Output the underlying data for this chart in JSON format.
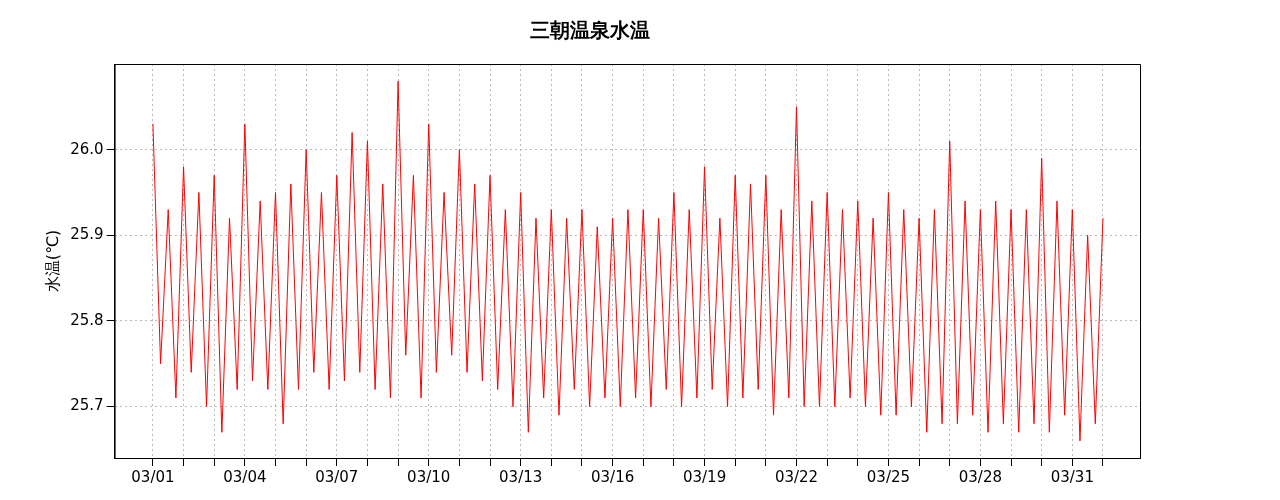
{
  "chart_data": {
    "type": "line",
    "title": "三朝温泉水温",
    "ylabel": "水温(℃)",
    "xlim": [
      "--02-27T18:00",
      "--04-02T05:00"
    ],
    "ylim": [
      25.64,
      26.1
    ],
    "xticks": [
      {
        "value": "--03-01",
        "label": "03/01"
      },
      {
        "value": "--03-02",
        "label": null
      },
      {
        "value": "--03-03",
        "label": null
      },
      {
        "value": "--03-04",
        "label": "03/04"
      },
      {
        "value": "--03-05",
        "label": null
      },
      {
        "value": "--03-06",
        "label": null
      },
      {
        "value": "--03-07",
        "label": "03/07"
      },
      {
        "value": "--03-08",
        "label": null
      },
      {
        "value": "--03-09",
        "label": null
      },
      {
        "value": "--03-10",
        "label": "03/10"
      },
      {
        "value": "--03-11",
        "label": null
      },
      {
        "value": "--03-12",
        "label": null
      },
      {
        "value": "--03-13",
        "label": "03/13"
      },
      {
        "value": "--03-14",
        "label": null
      },
      {
        "value": "--03-15",
        "label": null
      },
      {
        "value": "--03-16",
        "label": "03/16"
      },
      {
        "value": "--03-17",
        "label": null
      },
      {
        "value": "--03-18",
        "label": null
      },
      {
        "value": "--03-19",
        "label": "03/19"
      },
      {
        "value": "--03-20",
        "label": null
      },
      {
        "value": "--03-21",
        "label": null
      },
      {
        "value": "--03-22",
        "label": "03/22"
      },
      {
        "value": "--03-23",
        "label": null
      },
      {
        "value": "--03-24",
        "label": null
      },
      {
        "value": "--03-25",
        "label": "03/25"
      },
      {
        "value": "--03-26",
        "label": null
      },
      {
        "value": "--03-27",
        "label": null
      },
      {
        "value": "--03-28",
        "label": "03/28"
      },
      {
        "value": "--03-29",
        "label": null
      },
      {
        "value": "--03-30",
        "label": null
      },
      {
        "value": "--03-31",
        "label": "03/31"
      },
      {
        "value": "--04-01",
        "label": null
      }
    ],
    "yticks": [
      25.7,
      25.8,
      25.9,
      {
        "value": 26,
        "label": "26.0"
      }
    ],
    "grid": true,
    "legend": false,
    "series": [
      {
        "color": "#ff0000",
        "x": [
          "--03-01T00:00",
          "--03-01T06:00",
          "--03-01T12:00",
          "--03-01T18:00",
          "--03-02T00:00",
          "--03-02T06:00",
          "--03-02T12:00",
          "--03-02T18:00",
          "--03-03T00:00",
          "--03-03T06:00",
          "--03-03T12:00",
          "--03-03T18:00",
          "--03-04T00:00",
          "--03-04T06:00",
          "--03-04T12:00",
          "--03-04T18:00",
          "--03-05T00:00",
          "--03-05T06:00",
          "--03-05T12:00",
          "--03-05T18:00",
          "--03-06T00:00",
          "--03-06T06:00",
          "--03-06T12:00",
          "--03-06T18:00",
          "--03-07T00:00",
          "--03-07T06:00",
          "--03-07T12:00",
          "--03-07T18:00",
          "--03-08T00:00",
          "--03-08T06:00",
          "--03-08T12:00",
          "--03-08T18:00",
          "--03-09T00:00",
          "--03-09T06:00",
          "--03-09T12:00",
          "--03-09T18:00",
          "--03-10T00:00",
          "--03-10T06:00",
          "--03-10T12:00",
          "--03-10T18:00",
          "--03-11T00:00",
          "--03-11T06:00",
          "--03-11T12:00",
          "--03-11T18:00",
          "--03-12T00:00",
          "--03-12T06:00",
          "--03-12T12:00",
          "--03-12T18:00",
          "--03-13T00:00",
          "--03-13T06:00",
          "--03-13T12:00",
          "--03-13T18:00",
          "--03-14T00:00",
          "--03-14T06:00",
          "--03-14T12:00",
          "--03-14T18:00",
          "--03-15T00:00",
          "--03-15T06:00",
          "--03-15T12:00",
          "--03-15T18:00",
          "--03-16T00:00",
          "--03-16T06:00",
          "--03-16T12:00",
          "--03-16T18:00",
          "--03-17T00:00",
          "--03-17T06:00",
          "--03-17T12:00",
          "--03-17T18:00",
          "--03-18T00:00",
          "--03-18T06:00",
          "--03-18T12:00",
          "--03-18T18:00",
          "--03-19T00:00",
          "--03-19T06:00",
          "--03-19T12:00",
          "--03-19T18:00",
          "--03-20T00:00",
          "--03-20T06:00",
          "--03-20T12:00",
          "--03-20T18:00",
          "--03-21T00:00",
          "--03-21T06:00",
          "--03-21T12:00",
          "--03-21T18:00",
          "--03-22T00:00",
          "--03-22T06:00",
          "--03-22T12:00",
          "--03-22T18:00",
          "--03-23T00:00",
          "--03-23T06:00",
          "--03-23T12:00",
          "--03-23T18:00",
          "--03-24T00:00",
          "--03-24T06:00",
          "--03-24T12:00",
          "--03-24T18:00",
          "--03-25T00:00",
          "--03-25T06:00",
          "--03-25T12:00",
          "--03-25T18:00",
          "--03-26T00:00",
          "--03-26T06:00",
          "--03-26T12:00",
          "--03-26T18:00",
          "--03-27T00:00",
          "--03-27T06:00",
          "--03-27T12:00",
          "--03-27T18:00",
          "--03-28T00:00",
          "--03-28T06:00",
          "--03-28T12:00",
          "--03-28T18:00",
          "--03-29T00:00",
          "--03-29T06:00",
          "--03-29T12:00",
          "--03-29T18:00",
          "--03-30T00:00",
          "--03-30T06:00",
          "--03-30T12:00",
          "--03-30T18:00",
          "--03-31T00:00",
          "--03-31T06:00",
          "--03-31T12:00",
          "--03-31T18:00",
          "--04-01T00:00"
        ],
        "values": [
          26.03,
          25.75,
          25.93,
          25.71,
          25.98,
          25.74,
          25.95,
          25.7,
          25.97,
          25.67,
          25.92,
          25.72,
          26.03,
          25.73,
          25.94,
          25.72,
          25.95,
          25.68,
          25.96,
          25.72,
          26.0,
          25.74,
          25.95,
          25.72,
          25.97,
          25.73,
          26.02,
          25.74,
          26.01,
          25.72,
          25.96,
          25.71,
          26.08,
          25.76,
          25.97,
          25.71,
          26.03,
          25.74,
          25.95,
          25.76,
          26.0,
          25.74,
          25.96,
          25.73,
          25.97,
          25.72,
          25.93,
          25.7,
          25.95,
          25.67,
          25.92,
          25.71,
          25.93,
          25.69,
          25.92,
          25.72,
          25.93,
          25.7,
          25.91,
          25.71,
          25.92,
          25.7,
          25.93,
          25.71,
          25.93,
          25.7,
          25.92,
          25.72,
          25.95,
          25.7,
          25.93,
          25.71,
          25.98,
          25.72,
          25.92,
          25.7,
          25.97,
          25.71,
          25.96,
          25.72,
          25.97,
          25.69,
          25.93,
          25.71,
          26.05,
          25.7,
          25.94,
          25.7,
          25.95,
          25.7,
          25.93,
          25.71,
          25.94,
          25.7,
          25.92,
          25.69,
          25.95,
          25.69,
          25.93,
          25.7,
          25.92,
          25.67,
          25.93,
          25.68,
          26.01,
          25.68,
          25.94,
          25.69,
          25.93,
          25.67,
          25.94,
          25.68,
          25.93,
          25.67,
          25.93,
          25.68,
          25.99,
          25.67,
          25.94,
          25.69,
          25.93,
          25.66,
          25.9,
          25.68,
          25.92
        ]
      }
    ]
  }
}
